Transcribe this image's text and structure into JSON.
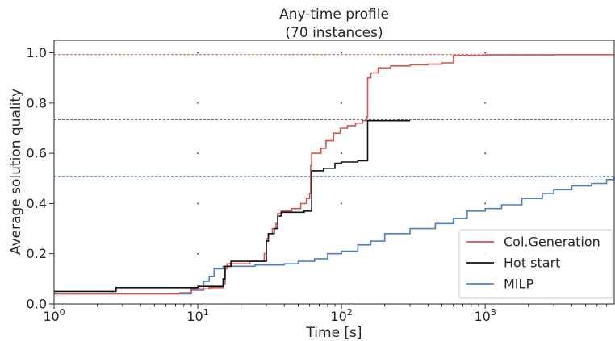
{
  "chart_data": {
    "type": "line",
    "title": [
      "Any-time profile",
      "(70 instances)"
    ],
    "xlabel": "Time [s]",
    "ylabel": "Average solution quality",
    "xscale": "log",
    "xlim": [
      1,
      7900
    ],
    "ylim": [
      0,
      1.05
    ],
    "xticks": [
      {
        "value": 1,
        "base": "10",
        "exp": "0"
      },
      {
        "value": 10,
        "base": "10",
        "exp": "1"
      },
      {
        "value": 100,
        "base": "10",
        "exp": "2"
      },
      {
        "value": 1000,
        "base": "10",
        "exp": "3"
      }
    ],
    "yticks": [
      {
        "value": 0,
        "label": "0.0"
      },
      {
        "value": 0.2,
        "label": "0.2"
      },
      {
        "value": 0.4,
        "label": "0.4"
      },
      {
        "value": 0.6,
        "label": "0.6"
      },
      {
        "value": 0.8,
        "label": "0.8"
      },
      {
        "value": 1.0,
        "label": "1.0"
      }
    ],
    "grid": "dots",
    "legend_position": "lower-right",
    "series": [
      {
        "name": "Col.Generation",
        "color": "#d9534f",
        "reference_line": 0.993,
        "points": [
          [
            1,
            0.04
          ],
          [
            7.5,
            0.045
          ],
          [
            9,
            0.06
          ],
          [
            12,
            0.065
          ],
          [
            15,
            0.08
          ],
          [
            15.5,
            0.14
          ],
          [
            16,
            0.16
          ],
          [
            20,
            0.16
          ],
          [
            23,
            0.17
          ],
          [
            28,
            0.17
          ],
          [
            29,
            0.2
          ],
          [
            30,
            0.26
          ],
          [
            31,
            0.28
          ],
          [
            33,
            0.3
          ],
          [
            35,
            0.32
          ],
          [
            36,
            0.36
          ],
          [
            38,
            0.37
          ],
          [
            45,
            0.38
          ],
          [
            52,
            0.4
          ],
          [
            57,
            0.42
          ],
          [
            60,
            0.44
          ],
          [
            61,
            0.55
          ],
          [
            62,
            0.6
          ],
          [
            68,
            0.6
          ],
          [
            72,
            0.62
          ],
          [
            78,
            0.65
          ],
          [
            88,
            0.68
          ],
          [
            98,
            0.7
          ],
          [
            110,
            0.71
          ],
          [
            125,
            0.72
          ],
          [
            140,
            0.73
          ],
          [
            150,
            0.745
          ],
          [
            152,
            0.9
          ],
          [
            160,
            0.92
          ],
          [
            180,
            0.94
          ],
          [
            220,
            0.948
          ],
          [
            300,
            0.952
          ],
          [
            400,
            0.955
          ],
          [
            500,
            0.96
          ],
          [
            600,
            0.99
          ],
          [
            1000,
            0.992
          ],
          [
            3000,
            0.993
          ],
          [
            7900,
            0.994
          ]
        ]
      },
      {
        "name": "Hot start",
        "color": "#111111",
        "reference_line": 0.735,
        "points": [
          [
            1,
            0.05
          ],
          [
            2.6,
            0.05
          ],
          [
            2.7,
            0.065
          ],
          [
            8,
            0.065
          ],
          [
            10,
            0.07
          ],
          [
            14,
            0.07
          ],
          [
            15,
            0.1
          ],
          [
            15.5,
            0.15
          ],
          [
            17,
            0.17
          ],
          [
            22,
            0.17
          ],
          [
            29,
            0.17
          ],
          [
            30,
            0.25
          ],
          [
            31,
            0.28
          ],
          [
            34,
            0.3
          ],
          [
            36,
            0.35
          ],
          [
            38,
            0.365
          ],
          [
            50,
            0.365
          ],
          [
            55,
            0.37
          ],
          [
            61,
            0.37
          ],
          [
            62,
            0.53
          ],
          [
            75,
            0.54
          ],
          [
            90,
            0.56
          ],
          [
            100,
            0.565
          ],
          [
            130,
            0.57
          ],
          [
            150,
            0.57
          ],
          [
            152,
            0.73
          ],
          [
            200,
            0.73
          ],
          [
            300,
            0.73
          ]
        ]
      },
      {
        "name": "MILP",
        "color": "#4c7fd1",
        "reference_line": 0.508,
        "points": [
          [
            1,
            0.04
          ],
          [
            6,
            0.04
          ],
          [
            9,
            0.055
          ],
          [
            11,
            0.09
          ],
          [
            12,
            0.11
          ],
          [
            13,
            0.14
          ],
          [
            15,
            0.15
          ],
          [
            25,
            0.155
          ],
          [
            40,
            0.16
          ],
          [
            50,
            0.17
          ],
          [
            65,
            0.18
          ],
          [
            80,
            0.2
          ],
          [
            100,
            0.21
          ],
          [
            130,
            0.235
          ],
          [
            160,
            0.25
          ],
          [
            200,
            0.28
          ],
          [
            300,
            0.3
          ],
          [
            450,
            0.32
          ],
          [
            600,
            0.34
          ],
          [
            750,
            0.37
          ],
          [
            1000,
            0.38
          ],
          [
            1300,
            0.395
          ],
          [
            1800,
            0.42
          ],
          [
            2500,
            0.44
          ],
          [
            3000,
            0.455
          ],
          [
            4000,
            0.47
          ],
          [
            5500,
            0.48
          ],
          [
            7000,
            0.495
          ],
          [
            7900,
            0.51
          ]
        ]
      }
    ]
  }
}
